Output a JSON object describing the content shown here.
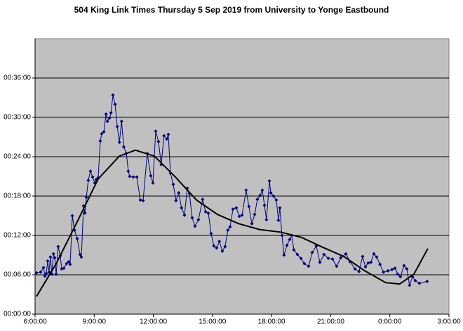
{
  "chart_data": {
    "type": "line",
    "title": "504 King Link Times Thursday 5 Sep 2019 from University to Yonge Eastbound",
    "xlim": [
      6,
      27
    ],
    "ylim": [
      0,
      42
    ],
    "grid": true,
    "plot_background": "#c0c0c0",
    "xticks": [
      {
        "value": 6,
        "label": "6:00:00"
      },
      {
        "value": 9,
        "label": "9:00:00"
      },
      {
        "value": 12,
        "label": "12:00:00"
      },
      {
        "value": 15,
        "label": "15:00:00"
      },
      {
        "value": 18,
        "label": "18:00:00"
      },
      {
        "value": 21,
        "label": "21:00:00"
      },
      {
        "value": 24,
        "label": "0:00:00"
      },
      {
        "value": 27,
        "label": "3:00:00"
      }
    ],
    "yticks": [
      {
        "value": 0,
        "label": "00:00:00"
      },
      {
        "value": 6,
        "label": "00:06:00"
      },
      {
        "value": 12,
        "label": "00:12:00"
      },
      {
        "value": 18,
        "label": "00:18:00"
      },
      {
        "value": 24,
        "label": "00:24:00"
      },
      {
        "value": 30,
        "label": "00:30:00"
      },
      {
        "value": 36,
        "label": "00:36:00"
      }
    ],
    "series": [
      {
        "color": "#000080",
        "marker": "diamond",
        "x": [
          6.07,
          6.28,
          6.43,
          6.5,
          6.57,
          6.64,
          6.71,
          6.78,
          6.85,
          6.93,
          7.0,
          7.07,
          7.17,
          7.28,
          7.35,
          7.46,
          7.6,
          7.71,
          7.78,
          7.89,
          8.0,
          8.14,
          8.28,
          8.35,
          8.46,
          8.53,
          8.6,
          8.7,
          8.81,
          8.92,
          9.03,
          9.1,
          9.2,
          9.31,
          9.38,
          9.49,
          9.6,
          9.67,
          9.78,
          9.85,
          9.95,
          10.06,
          10.17,
          10.28,
          10.39,
          10.5,
          10.63,
          10.73,
          10.8,
          10.98,
          11.16,
          11.34,
          11.48,
          11.69,
          11.87,
          11.98,
          12.12,
          12.26,
          12.4,
          12.54,
          12.68,
          12.76,
          12.87,
          13.01,
          13.15,
          13.29,
          13.43,
          13.58,
          13.72,
          13.83,
          13.97,
          14.11,
          14.29,
          14.5,
          14.65,
          14.79,
          14.93,
          15.07,
          15.21,
          15.35,
          15.5,
          15.64,
          15.78,
          15.89,
          16.04,
          16.21,
          16.36,
          16.5,
          16.71,
          16.85,
          17.0,
          17.14,
          17.28,
          17.42,
          17.53,
          17.64,
          17.74,
          17.89,
          17.96,
          18.1,
          18.24,
          18.35,
          18.42,
          18.53,
          18.63,
          18.78,
          18.92,
          19.02,
          19.13,
          19.31,
          19.49,
          19.66,
          19.88,
          20.06,
          20.27,
          20.45,
          20.66,
          20.88,
          21.09,
          21.3,
          21.51,
          21.77,
          21.98,
          22.23,
          22.44,
          22.62,
          22.76,
          22.9,
          23.04,
          23.19,
          23.33,
          23.5,
          23.68,
          23.9,
          24.11,
          24.26,
          24.4,
          24.54,
          24.72,
          24.86,
          25.0,
          25.15,
          25.29,
          25.5,
          25.89
        ],
        "values": [
          6.3,
          6.4,
          7.1,
          5.8,
          6.2,
          8.1,
          6.4,
          8.7,
          6.1,
          9.2,
          8.6,
          6.1,
          10.3,
          8.9,
          6.9,
          7.0,
          7.7,
          8.0,
          7.6,
          15.0,
          12.8,
          11.5,
          9.1,
          8.7,
          16.5,
          15.4,
          17.8,
          20.4,
          21.8,
          20.9,
          20.0,
          20.5,
          20.8,
          26.4,
          27.5,
          27.8,
          30.5,
          29.4,
          29.9,
          30.7,
          33.4,
          32.0,
          28.6,
          26.2,
          29.4,
          25.5,
          24.5,
          21.8,
          21.0,
          20.9,
          20.9,
          17.4,
          17.3,
          24.5,
          21.1,
          20.0,
          27.9,
          26.3,
          22.8,
          27.2,
          26.7,
          27.4,
          21.5,
          19.8,
          17.3,
          18.5,
          16.2,
          15.1,
          19.2,
          18.4,
          14.7,
          13.4,
          14.4,
          17.5,
          15.6,
          15.4,
          12.3,
          10.4,
          10.1,
          11.1,
          9.6,
          10.3,
          12.8,
          13.3,
          16.0,
          16.2,
          14.9,
          15.1,
          18.9,
          16.4,
          13.8,
          15.2,
          17.5,
          18.1,
          18.9,
          16.6,
          14.4,
          20.3,
          18.5,
          18.0,
          17.4,
          14.3,
          16.2,
          12.0,
          9.0,
          10.5,
          11.4,
          12.0,
          9.8,
          9.1,
          8.5,
          7.7,
          7.3,
          9.4,
          10.4,
          7.9,
          9.1,
          8.5,
          8.4,
          7.3,
          8.6,
          9.2,
          8.0,
          6.9,
          6.5,
          8.8,
          7.2,
          7.8,
          7.9,
          9.2,
          8.7,
          7.6,
          6.4,
          6.6,
          6.8,
          7.0,
          6.1,
          5.7,
          7.4,
          6.9,
          4.4,
          5.7,
          5.1,
          4.7,
          5.0
        ]
      },
      {
        "color": "#000000",
        "marker": "none",
        "x": [
          6.07,
          7.07,
          8.14,
          9.2,
          10.28,
          11.09,
          12.05,
          13.12,
          14.19,
          15.25,
          16.32,
          17.39,
          18.46,
          19.52,
          20.59,
          21.66,
          22.73,
          23.79,
          24.5,
          25.22,
          25.93
        ],
        "values": [
          2.7,
          7.7,
          14.1,
          20.6,
          24.1,
          25.0,
          24.1,
          20.9,
          17.4,
          15.2,
          13.8,
          12.9,
          12.5,
          11.7,
          10.2,
          8.8,
          6.6,
          4.8,
          4.6,
          6.1,
          10.0
        ]
      }
    ]
  }
}
